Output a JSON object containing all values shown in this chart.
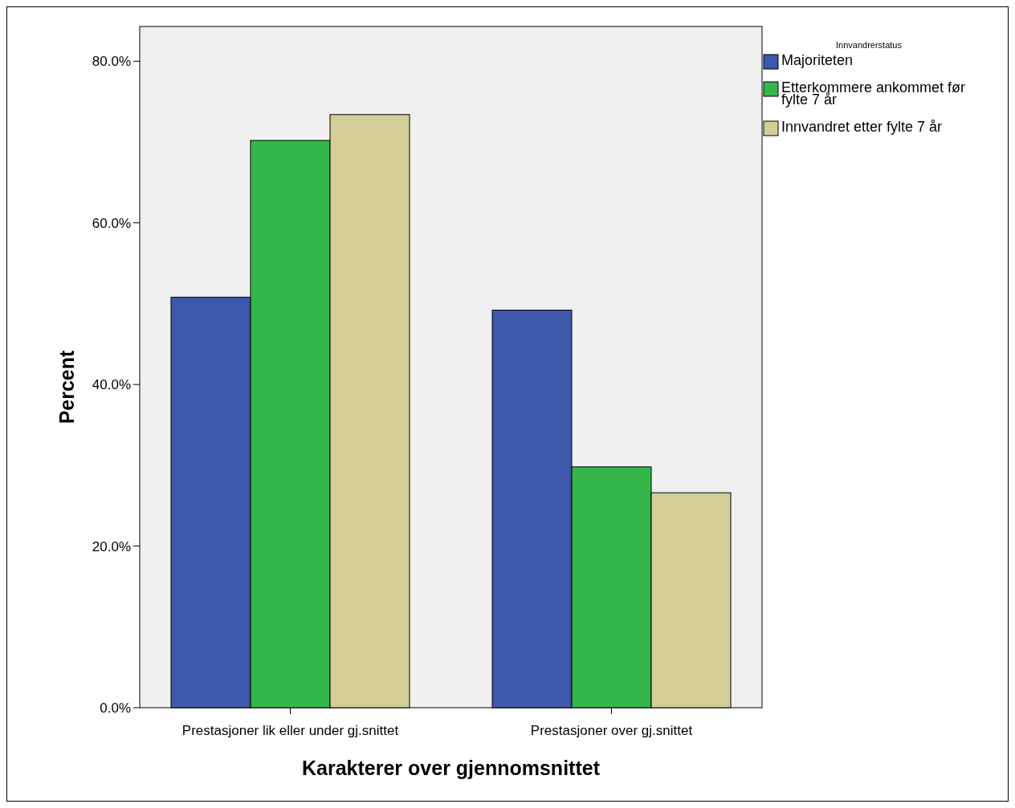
{
  "chart_data": {
    "type": "bar",
    "xlabel": "Karakterer over gjennomsnittet",
    "ylabel": "Percent",
    "legend_title": "Innvandrerstatus",
    "categories": [
      "Prestasjoner lik eller under gj.snittet",
      "Prestasjoner over gj.snittet"
    ],
    "series": [
      {
        "name": "Majoriteten",
        "color": "#3e58ac",
        "values": [
          50.8,
          49.2
        ]
      },
      {
        "name": "Etterkommere ankommet før fylte 7 år",
        "color": "#33b64a",
        "values": [
          70.2,
          29.8
        ]
      },
      {
        "name": "Innvandret etter fylte 7 år",
        "color": "#d3ce97",
        "values": [
          73.4,
          26.6
        ]
      }
    ],
    "ylim": [
      0,
      84.3
    ],
    "yticks": [
      {
        "value": 0,
        "label": "0.0%"
      },
      {
        "value": 20,
        "label": "20.0%"
      },
      {
        "value": 40,
        "label": "40.0%"
      },
      {
        "value": 60,
        "label": "60.0%"
      },
      {
        "value": 80,
        "label": "80.0%"
      }
    ],
    "grid": false,
    "legend": "top right"
  }
}
